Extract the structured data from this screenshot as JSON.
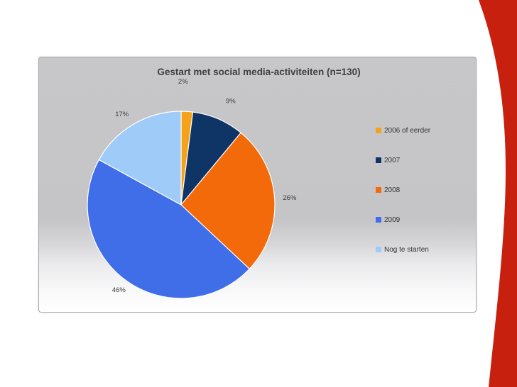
{
  "chart_data": {
    "type": "pie",
    "title": "Gestart met social media-activiteiten (n=130)",
    "categories": [
      "2006 of eerder",
      "2007",
      "2008",
      "2009",
      "Nog te starten"
    ],
    "values": [
      2,
      9,
      26,
      46,
      17
    ],
    "value_labels": [
      "2%",
      "9%",
      "26%",
      "46%",
      "17%"
    ],
    "colors": [
      "#f5a21a",
      "#0f3466",
      "#f26a0a",
      "#3f6ee8",
      "#9fcbf8"
    ],
    "legend_position": "right",
    "start_angle": "12 o'clock, clockwise"
  },
  "theme": {
    "accent_red": "#c8200f"
  }
}
